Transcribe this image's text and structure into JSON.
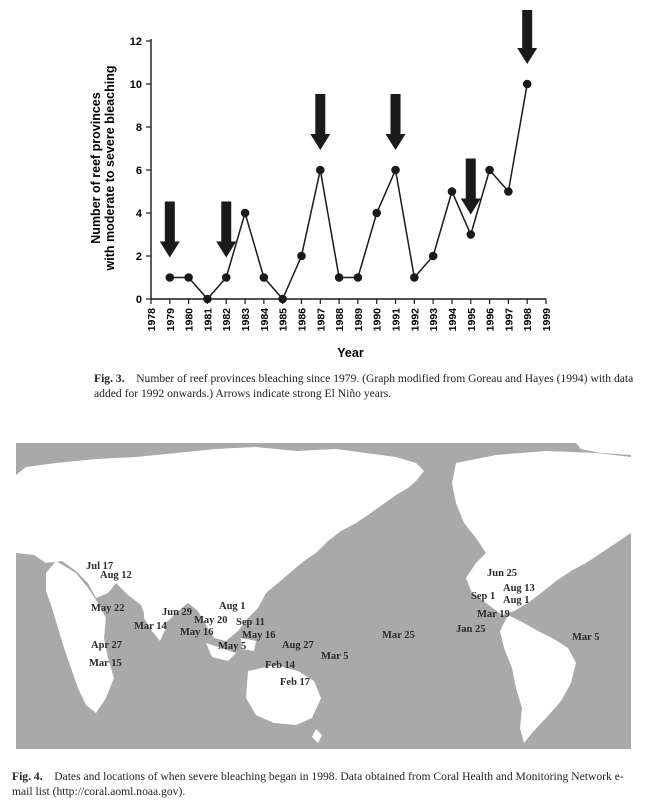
{
  "chart_data": {
    "type": "line",
    "x": [
      1979,
      1980,
      1981,
      1982,
      1983,
      1984,
      1985,
      1986,
      1987,
      1988,
      1989,
      1990,
      1991,
      1992,
      1993,
      1994,
      1995,
      1996,
      1997,
      1998
    ],
    "values": [
      1,
      1,
      0,
      1,
      4,
      1,
      0,
      2,
      6,
      1,
      1,
      4,
      6,
      1,
      2,
      5,
      3,
      6,
      5,
      10
    ],
    "xlabel": "Year",
    "ylabel": "Number of reef provinces with moderate to severe bleaching",
    "ylim": [
      0,
      12
    ],
    "yticks": [
      "0",
      "2",
      "4",
      "6",
      "8",
      "10",
      "12"
    ],
    "xticks": [
      "1978",
      "1979",
      "1980",
      "1981",
      "1982",
      "1983",
      "1984",
      "1985",
      "1986",
      "1987",
      "1988",
      "1989",
      "1990",
      "1991",
      "1992",
      "1993",
      "1994",
      "1995",
      "1996",
      "1997",
      "1998",
      "1999"
    ],
    "el_nino_years": [
      1979,
      1982,
      1987,
      1991,
      1995,
      1998
    ],
    "grid": false
  },
  "fig3": {
    "label": "Fig. 3.",
    "text": "Number of reef provinces bleaching since 1979. (Graph modified from Goreau and Hayes (1994) with data added for 1992 onwards.) Arrows indicate strong El Niño years."
  },
  "fig4": {
    "label": "Fig. 4.",
    "text": "Dates and locations of when severe bleaching began in 1998. Data obtained from Coral Health and Monitoring Network e-mail list (http://coral.aoml.noaa.gov).",
    "map_labels": [
      "Jul 17",
      "Aug 12",
      "May 22",
      "Jun 29",
      "Aug 1",
      "May 20",
      "Sep 11",
      "Mar 14",
      "May 16",
      "May 16",
      "May 5",
      "Aug 27",
      "Apr 27",
      "Mar 5",
      "Mar 15",
      "Feb 14",
      "Feb 17",
      "Mar 25",
      "Jun 25",
      "Sep 1",
      "Aug 13",
      "Aug 1",
      "Mar 19",
      "Jan 25",
      "Mar 5"
    ]
  },
  "colors": {
    "ocean": "#a9a9a9",
    "land": "#ffffff",
    "line": "#1a1a1a"
  }
}
